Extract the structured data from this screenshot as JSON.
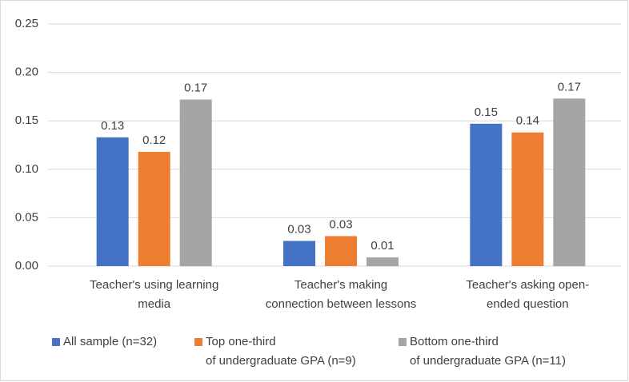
{
  "chart_data": {
    "type": "bar",
    "categories": [
      "Teacher's using learning\nmedia",
      "Teacher's making\nconnection between lessons",
      "Teacher's asking open-\nended question"
    ],
    "series": [
      {
        "name": "All sample (n=32)",
        "color": "#4472c4",
        "values": [
          0.133,
          0.026,
          0.147
        ],
        "value_labels": [
          "0.13",
          "0.03",
          "0.15"
        ]
      },
      {
        "name": "Top one-third\nof undergraduate GPA (n=9)",
        "color": "#ed7d31",
        "values": [
          0.118,
          0.031,
          0.138
        ],
        "value_labels": [
          "0.12",
          "0.03",
          "0.14"
        ]
      },
      {
        "name": "Bottom one-third\nof undergraduate GPA (n=11)",
        "color": "#a5a5a5",
        "values": [
          0.172,
          0.009,
          0.173
        ],
        "value_labels": [
          "0.17",
          "0.01",
          "0.17"
        ]
      }
    ],
    "ylim": [
      0,
      0.25
    ],
    "yticks": [
      {
        "value": 0,
        "label": "0.00"
      },
      {
        "value": 0.05,
        "label": "0.05"
      },
      {
        "value": 0.1,
        "label": "0.10"
      },
      {
        "value": 0.15,
        "label": "0.15"
      },
      {
        "value": 0.2,
        "label": "0.20"
      },
      {
        "value": 0.25,
        "label": "0.25"
      }
    ],
    "grid": true,
    "legend": "bottom"
  }
}
